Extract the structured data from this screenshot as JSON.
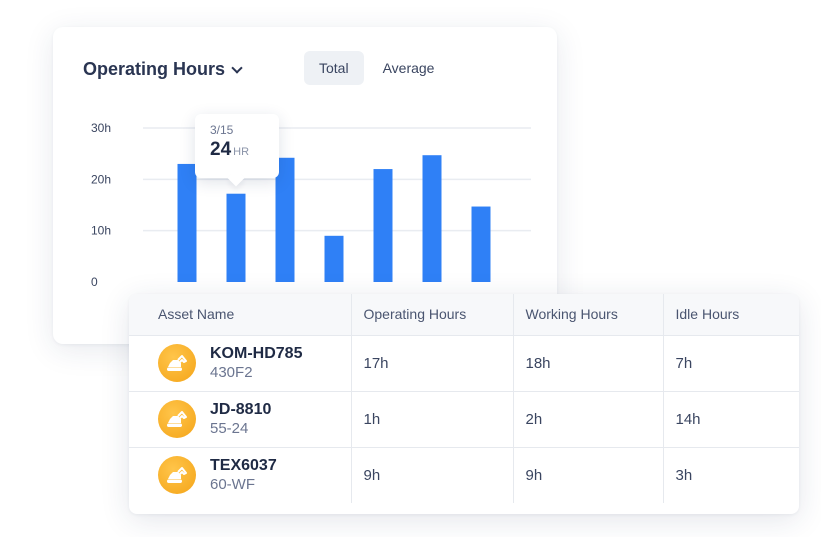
{
  "chart_card": {
    "title": "Operating Hours",
    "toggle": {
      "options": [
        "Total",
        "Average"
      ],
      "active": "Total"
    }
  },
  "tooltip": {
    "date": "3/15",
    "value": "24",
    "unit": "HR"
  },
  "chart_data": {
    "type": "bar",
    "title": "Operating Hours",
    "values": [
      23,
      17.2,
      24.2,
      9,
      22,
      24.7,
      14.7
    ],
    "highlight_index": 1,
    "ylim": [
      0,
      30
    ],
    "ytick_labels": [
      "0",
      "10h",
      "20h",
      "30h"
    ],
    "ytick_values": [
      0,
      10,
      20,
      30
    ],
    "bar_color": "#2f80f6",
    "grid": true
  },
  "table": {
    "columns": [
      "Asset Name",
      "Operating Hours",
      "Working Hours",
      "Idle Hours"
    ],
    "rows": [
      {
        "name": "KOM-HD785",
        "code": "430F2",
        "operating": "17h",
        "working": "18h",
        "idle": "7h"
      },
      {
        "name": "JD-8810",
        "code": "55-24",
        "operating": "1h",
        "working": "2h",
        "idle": "14h"
      },
      {
        "name": "TEX6037",
        "code": "60-WF",
        "operating": "9h",
        "working": "9h",
        "idle": "3h"
      }
    ],
    "row_icon": "excavator-icon",
    "icon_color": "#f5a91c"
  }
}
